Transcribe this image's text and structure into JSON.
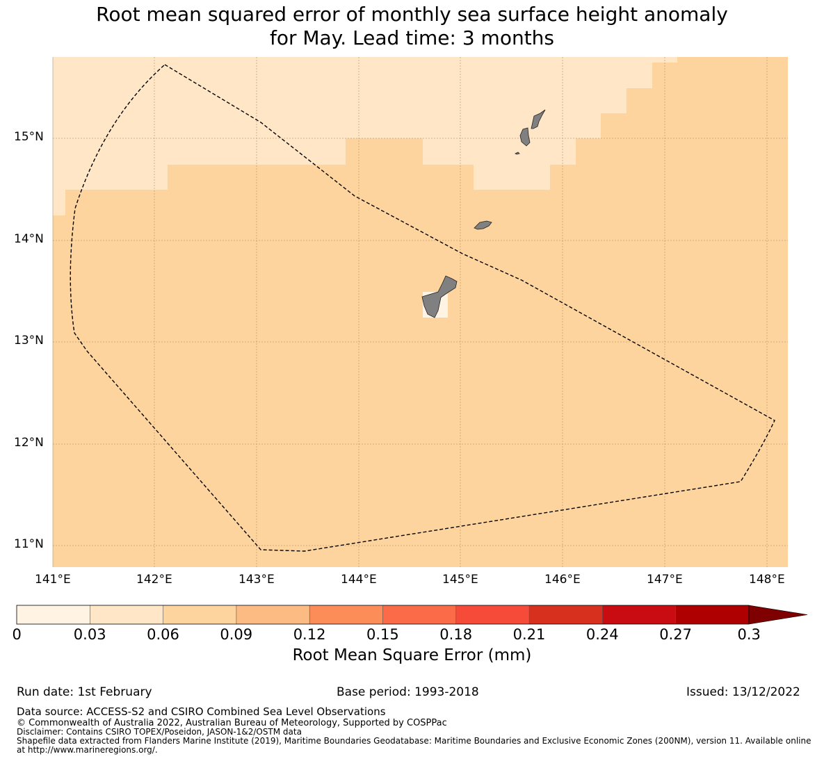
{
  "title": {
    "line1": "Root mean squared error of monthly sea surface height anomaly",
    "line2": "for May. Lead time: 3 months"
  },
  "map": {
    "lat_labels": [
      "15°N",
      "14°N",
      "13°N",
      "12°N",
      "11°N"
    ],
    "lon_labels": [
      "141°E",
      "142°E",
      "143°E",
      "144°E",
      "145°E",
      "146°E",
      "147°E",
      "148°E"
    ],
    "colors": {
      "low": "#fee6c6",
      "mid": "#fdd49e",
      "lowest": "#fff4e3",
      "land": "#808080",
      "grid": "#b08860"
    },
    "field_values": {
      "light_region": "0.03-0.06",
      "main_region": "0.06-0.09"
    },
    "eez_boundary": "dashed"
  },
  "colorbar": {
    "ticks": [
      "0",
      "0.03",
      "0.06",
      "0.09",
      "0.12",
      "0.15",
      "0.18",
      "0.21",
      "0.24",
      "0.27",
      "0.3"
    ],
    "colors": [
      "#fff4e3",
      "#fee6c6",
      "#fdd49e",
      "#fdbb84",
      "#fc8d59",
      "#fc6b48",
      "#f64b39",
      "#d7301f",
      "#c80c12",
      "#ae0000",
      "#7f0000"
    ],
    "label": "Root Mean Square Error (mm)"
  },
  "footer": {
    "run_date": "Run date: 1st February",
    "base_period": "Base period: 1993-2018",
    "issued": "Issued: 13/12/2022",
    "data_source": "Data source: ACCESS-S2 and CSIRO Combined Sea Level Observations",
    "copyright": "© Commonwealth of Australia 2022, Australian Bureau of Meteorology, Supported by COSPPac",
    "disclaimer": "Disclaimer: Contains CSIRO TOPEX/Poseidon, JASON-1&2/OSTM data",
    "shapefile_line1": "Shapefile data extracted from Flanders Marine Institute (2019), Maritime Boundaries Geodatabase: Maritime Boundaries and Exclusive Economic Zones (200NM), version 11. Available online",
    "shapefile_line2": "at http://www.marineregions.org/."
  }
}
